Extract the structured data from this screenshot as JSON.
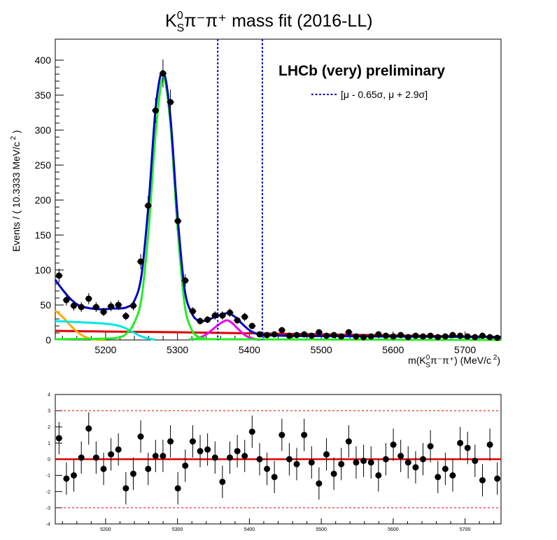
{
  "title": {
    "main": "K",
    "sup": "0",
    "sub": "S",
    "rest": "π⁻π⁺ mass fit (2016-LL)"
  },
  "watermark": "LHCb (very) preliminary",
  "legend_text": "[μ - 0.65σ,   μ + 2.9σ]",
  "colors": {
    "total": "#0000cc",
    "signal": "#22ee22",
    "comb": "#dd0000",
    "partreco": "#ffaa00",
    "cyan": "#00e5e5",
    "magenta": "#ee00ee",
    "window": "#0000cc",
    "points": "#000000"
  },
  "chart_data": [
    {
      "type": "scatter",
      "title": "K⁰Sπ⁻π⁺ mass fit (2016-LL)",
      "xlabel": "m(K⁰Sπ⁻π⁺) (MeV/c²)",
      "ylabel": "Events / ( 10.3333 MeV/c ² )",
      "xlim": [
        5130,
        5750
      ],
      "ylim": [
        0,
        430
      ],
      "xticks": [
        5200,
        5300,
        5400,
        5500,
        5600,
        5700
      ],
      "yticks": [
        0,
        50,
        100,
        150,
        200,
        250,
        300,
        350,
        400
      ],
      "window_lines": [
        5356,
        5418
      ],
      "legend": [
        "[μ - 0.65σ,   μ + 2.9σ]"
      ],
      "grid": false,
      "x": [
        5135.2,
        5145.5,
        5155.8,
        5166.2,
        5176.5,
        5186.8,
        5197.2,
        5207.5,
        5217.8,
        5228.2,
        5238.5,
        5248.8,
        5259.2,
        5269.5,
        5279.8,
        5290.2,
        5300.5,
        5310.8,
        5321.2,
        5331.5,
        5341.8,
        5352.2,
        5362.5,
        5372.8,
        5383.2,
        5393.5,
        5403.8,
        5414.2,
        5424.5,
        5434.8,
        5445.2,
        5455.5,
        5465.8,
        5476.2,
        5486.5,
        5496.8,
        5507.2,
        5517.5,
        5527.8,
        5538.2,
        5548.5,
        5558.8,
        5569.2,
        5579.5,
        5589.8,
        5600.2,
        5610.5,
        5620.8,
        5631.2,
        5641.5,
        5651.8,
        5662.2,
        5672.5,
        5682.8,
        5693.2,
        5703.5,
        5713.8,
        5724.2,
        5734.5,
        5744.8
      ],
      "y": [
        92,
        57,
        49,
        47,
        59,
        47,
        40,
        48,
        50,
        34,
        49,
        112,
        192,
        328,
        381,
        340,
        170,
        85,
        41,
        27,
        29,
        35,
        35,
        39,
        28,
        33,
        20,
        8,
        7,
        8,
        14,
        6,
        7,
        8,
        6,
        11,
        6,
        7,
        5,
        11,
        5,
        4,
        5,
        8,
        6,
        5,
        7,
        4,
        6,
        5,
        6,
        4,
        5,
        7,
        6,
        5,
        4,
        6,
        4,
        3
      ],
      "yerr": [
        10,
        8,
        7,
        7,
        8,
        7,
        6,
        7,
        7,
        6,
        7,
        11,
        14,
        18,
        20,
        18,
        13,
        9,
        6,
        5,
        5,
        6,
        6,
        6,
        5,
        6,
        4.5,
        3,
        3,
        3,
        4,
        2.5,
        3,
        3,
        2.5,
        3.3,
        2.5,
        3,
        2.3,
        3.3,
        2.3,
        2,
        2.3,
        3,
        2.5,
        2.3,
        2.7,
        2,
        2.5,
        2.3,
        2.5,
        2,
        2.3,
        2.7,
        2.5,
        2.3,
        2,
        2.5,
        2,
        1.8
      ],
      "series": [
        {
          "name": "",
          "color": "#0000cc",
          "x": [
            5130,
            5140,
            5150,
            5160,
            5170,
            5180,
            5190,
            5200,
            5210,
            5220,
            5230,
            5240,
            5250,
            5260,
            5270,
            5280,
            5290,
            5300,
            5310,
            5320,
            5330,
            5340,
            5350,
            5360,
            5370,
            5380,
            5390,
            5400,
            5410,
            5420,
            5450,
            5500,
            5550,
            5600,
            5650,
            5700,
            5750
          ],
          "y": [
            86,
            72,
            60,
            51,
            47,
            45,
            44,
            44,
            45,
            45,
            47,
            56,
            93,
            198,
            335,
            384,
            320,
            178,
            72,
            38,
            27,
            28,
            32,
            36,
            38,
            33,
            23,
            14,
            9,
            7,
            6,
            5.5,
            5.2,
            4.9,
            4.6,
            4.4,
            4.1
          ]
        },
        {
          "name": "",
          "color": "#22ee22",
          "x": [
            5130,
            5200,
            5220,
            5230,
            5240,
            5250,
            5260,
            5270,
            5280,
            5290,
            5300,
            5310,
            5320,
            5330,
            5340,
            5350,
            5750
          ],
          "y": [
            1,
            2,
            4,
            10,
            25,
            60,
            160,
            300,
            375,
            310,
            160,
            50,
            14,
            4,
            2,
            1,
            0
          ]
        },
        {
          "name": "",
          "color": "#dd0000",
          "x": [
            5130,
            5200,
            5300,
            5400,
            5500,
            5600,
            5700,
            5750
          ],
          "y": [
            13,
            12,
            11,
            9.5,
            8,
            6.5,
            5,
            4.3
          ]
        },
        {
          "name": "",
          "color": "#ffaa00",
          "x": [
            5130,
            5140,
            5150,
            5160,
            5170,
            5180,
            5190,
            5200
          ],
          "y": [
            42,
            33,
            22,
            12,
            5,
            1.5,
            0.3,
            0
          ]
        },
        {
          "name": "",
          "color": "#00e5e5",
          "x": [
            5130,
            5150,
            5170,
            5190,
            5210,
            5225,
            5240,
            5250,
            5260,
            5270
          ],
          "y": [
            27,
            26,
            25,
            24,
            22,
            18,
            10,
            5,
            2,
            0
          ]
        },
        {
          "name": "",
          "color": "#ee00ee",
          "x": [
            5320,
            5330,
            5340,
            5350,
            5360,
            5368,
            5375,
            5385,
            5395,
            5405,
            5415
          ],
          "y": [
            0,
            3,
            8,
            16,
            24,
            28,
            25,
            15,
            6,
            2,
            0
          ]
        }
      ]
    },
    {
      "type": "scatter",
      "xlim": [
        5130,
        5750
      ],
      "ylim": [
        -4,
        4
      ],
      "xticks": [
        5200,
        5300,
        5400,
        5500,
        5600,
        5700
      ],
      "yticks": [
        -4,
        -3,
        -2,
        -1,
        0,
        1,
        2,
        3,
        4
      ],
      "reference_lines": [
        -3,
        0,
        3
      ],
      "x": [
        5135.2,
        5145.5,
        5155.8,
        5166.2,
        5176.5,
        5186.8,
        5197.2,
        5207.5,
        5217.8,
        5228.2,
        5238.5,
        5248.8,
        5259.2,
        5269.5,
        5279.8,
        5290.2,
        5300.5,
        5310.8,
        5321.2,
        5331.5,
        5341.8,
        5352.2,
        5362.5,
        5372.8,
        5383.2,
        5393.5,
        5403.8,
        5414.2,
        5424.5,
        5434.8,
        5445.2,
        5455.5,
        5465.8,
        5476.2,
        5486.5,
        5496.8,
        5507.2,
        5517.5,
        5527.8,
        5538.2,
        5548.5,
        5558.8,
        5569.2,
        5579.5,
        5589.8,
        5600.2,
        5610.5,
        5620.8,
        5631.2,
        5641.5,
        5651.8,
        5662.2,
        5672.5,
        5682.8,
        5693.2,
        5703.5,
        5713.8,
        5724.2,
        5734.5,
        5744.8
      ],
      "y": [
        1.3,
        -1.2,
        -1.0,
        0.1,
        1.9,
        0.1,
        -0.6,
        0.3,
        0.6,
        -1.8,
        -0.9,
        1.4,
        -0.6,
        0.2,
        0.2,
        1.1,
        -1.8,
        -0.4,
        1.1,
        0.5,
        0.6,
        0.1,
        -1.4,
        0.1,
        0.5,
        0.2,
        1.7,
        0,
        -0.6,
        -1.1,
        1.5,
        0,
        -0.3,
        1.5,
        -0.2,
        -1.5,
        0.3,
        -0.9,
        -0.3,
        1.1,
        -0.2,
        -0.1,
        -0.2,
        -1.0,
        0,
        0.9,
        0.2,
        -0.2,
        -0.5,
        0,
        0.8,
        -1.1,
        -0.6,
        -1.0,
        1.0,
        0.7,
        -0.1,
        -1.3,
        0.9,
        -1.2
      ],
      "yerr": 1
    }
  ]
}
